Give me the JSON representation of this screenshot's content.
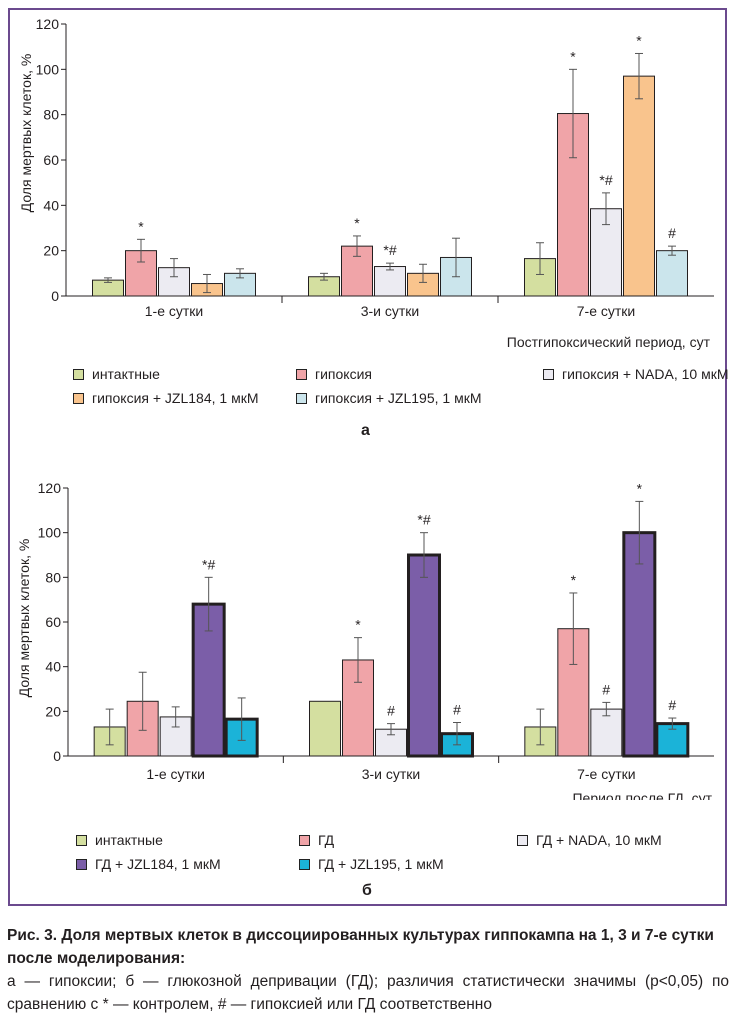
{
  "chart_data": [
    {
      "type": "bar",
      "panel": "а",
      "ylabel": "Доля мертвых клеток, %",
      "xlabel": "Постгипоксический период, сут",
      "ylim": [
        0,
        120
      ],
      "yticks": [
        0,
        20,
        40,
        60,
        80,
        100,
        120
      ],
      "categories": [
        "1-е сутки",
        "3-и сутки",
        "7-е сутки"
      ],
      "series": [
        {
          "name": "интактные",
          "color": "#d4dfa0",
          "values": [
            7,
            8.5,
            16.5
          ],
          "errors": [
            1,
            1.5,
            7
          ],
          "marks": [
            "",
            "",
            ""
          ]
        },
        {
          "name": "гипоксия",
          "color": "#f0a4a8",
          "values": [
            20,
            22,
            80.5
          ],
          "errors": [
            5,
            4.5,
            19.5
          ],
          "marks": [
            "*",
            "*",
            "*"
          ]
        },
        {
          "name": "гипоксия + NADA, 10 мкМ",
          "color": "#ecebf2",
          "values": [
            12.5,
            13,
            38.5
          ],
          "errors": [
            4,
            1.5,
            7
          ],
          "marks": [
            "",
            "*#",
            "*#"
          ]
        },
        {
          "name": "гипоксия + JZL184, 1 мкМ",
          "color": "#f9c48d",
          "values": [
            5.5,
            10,
            97
          ],
          "errors": [
            4,
            4,
            10
          ],
          "marks": [
            "",
            "",
            "*"
          ]
        },
        {
          "name": "гипоксия + JZL195, 1 мкМ",
          "color": "#cbe5ec",
          "values": [
            10,
            17,
            20
          ],
          "errors": [
            2,
            8.5,
            2
          ],
          "marks": [
            "",
            "",
            "#"
          ]
        }
      ]
    },
    {
      "type": "bar",
      "panel": "б",
      "ylabel": "Доля мертвых клеток, %",
      "xlabel": "Период после ГД, сут",
      "ylim": [
        0,
        120
      ],
      "yticks": [
        0,
        20,
        40,
        60,
        80,
        100,
        120
      ],
      "categories": [
        "1-е сутки",
        "3-и сутки",
        "7-е сутки"
      ],
      "series": [
        {
          "name": "интактные",
          "color": "#d4dfa0",
          "values": [
            13,
            24.5,
            13
          ],
          "errors": [
            8,
            0,
            8
          ],
          "marks": [
            "",
            "",
            ""
          ]
        },
        {
          "name": "ГД",
          "color": "#f0a4a8",
          "values": [
            24.5,
            43,
            57
          ],
          "errors": [
            13,
            10,
            16
          ],
          "marks": [
            "",
            "*",
            "*"
          ]
        },
        {
          "name": "ГД + NADA, 10 мкМ",
          "color": "#ecebf2",
          "values": [
            17.5,
            12,
            21
          ],
          "errors": [
            4.5,
            2.5,
            3
          ],
          "marks": [
            "",
            "#",
            "#"
          ]
        },
        {
          "name": "ГД + JZL184, 1 мкМ",
          "color": "#7b5ea8",
          "values": [
            68,
            90,
            100
          ],
          "errors": [
            12,
            10,
            14
          ],
          "marks": [
            "*#",
            "*#",
            "*"
          ]
        },
        {
          "name": "ГД + JZL195, 1 мкМ",
          "color": "#1bb3d8",
          "values": [
            16.5,
            10,
            14.5
          ],
          "errors": [
            9.5,
            5,
            2.5
          ],
          "marks": [
            "",
            "#",
            "#"
          ]
        }
      ]
    }
  ],
  "caption": {
    "title": "Рис. 3. Доля мертвых клеток в диссоциированных культурах гиппокампа на 1, 3 и 7-е сутки после моделирования:",
    "description": "а — гипоксии; б — глюкозной депривации (ГД); различия статистически значимы (p<0,05) по сравнению с * — контролем, # — гипоксией или ГД соответственно"
  }
}
